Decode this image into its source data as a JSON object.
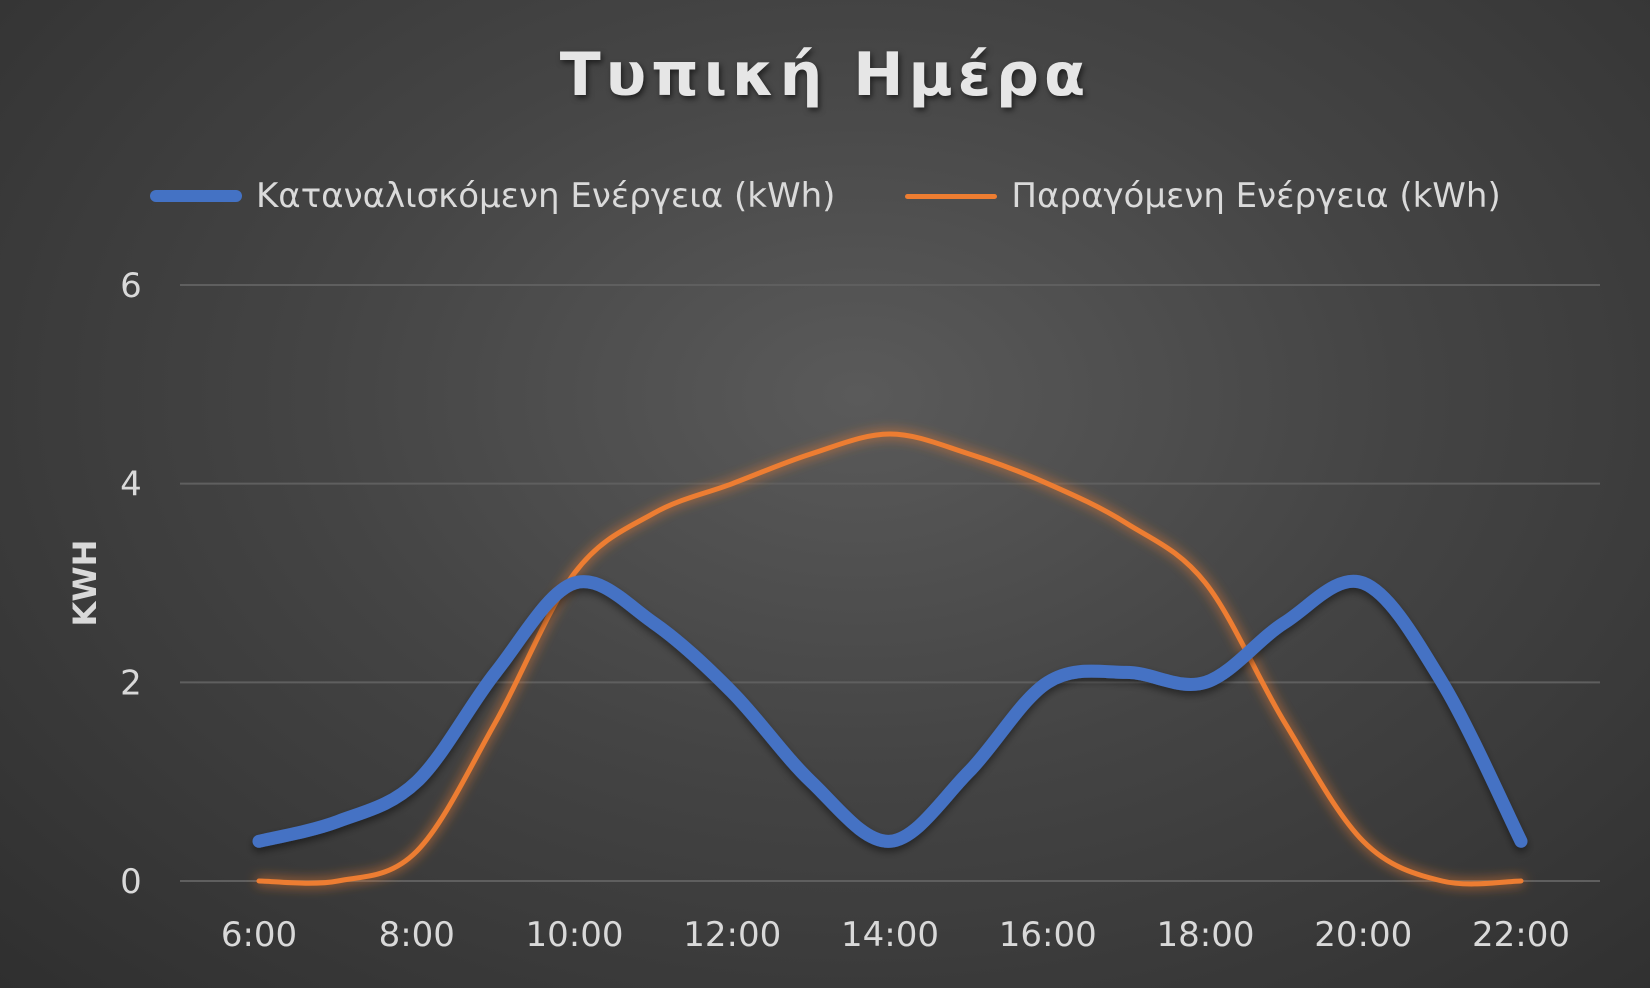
{
  "chart_data": {
    "type": "line",
    "title": "Τυπική Ημέρα",
    "ylabel": "KWH",
    "xlabel": "",
    "x": [
      "6:00",
      "7:00",
      "8:00",
      "9:00",
      "10:00",
      "11:00",
      "12:00",
      "13:00",
      "14:00",
      "15:00",
      "16:00",
      "17:00",
      "18:00",
      "19:00",
      "20:00",
      "21:00",
      "22:00"
    ],
    "x_tick_labels": [
      "6:00",
      "8:00",
      "10:00",
      "12:00",
      "14:00",
      "16:00",
      "18:00",
      "20:00",
      "22:00"
    ],
    "ylim": [
      0,
      6
    ],
    "y_ticks": [
      0,
      2,
      4,
      6
    ],
    "grid": true,
    "legend_position": "top",
    "series": [
      {
        "name": "Καταναλισκόμενη Ενέργεια (kWh)",
        "color": "#4472C4",
        "values": [
          0.4,
          0.6,
          1.0,
          2.1,
          3.0,
          2.6,
          1.9,
          1.0,
          0.4,
          1.1,
          2.0,
          2.1,
          2.0,
          2.6,
          3.0,
          2.0,
          0.4
        ]
      },
      {
        "name": "Παραγόμενη Ενέργεια (kWh)",
        "color": "#ED7D31",
        "values": [
          0.0,
          0.0,
          0.3,
          1.6,
          3.1,
          3.7,
          4.0,
          4.3,
          4.5,
          4.3,
          4.0,
          3.6,
          3.0,
          1.6,
          0.4,
          0.0,
          0.0
        ]
      }
    ]
  }
}
